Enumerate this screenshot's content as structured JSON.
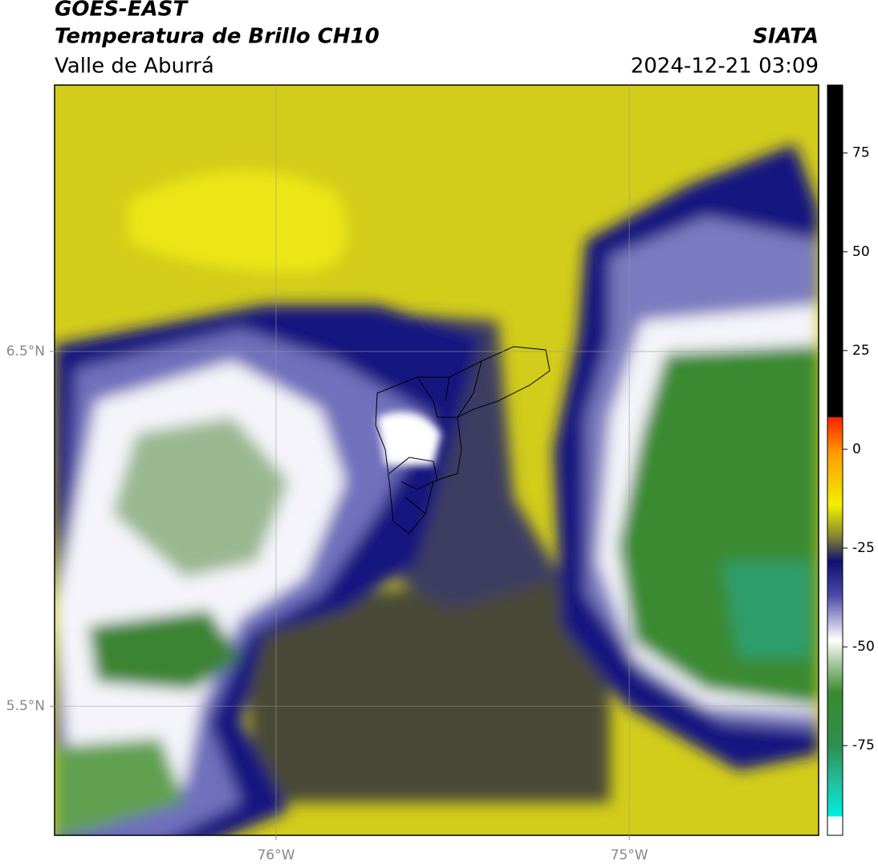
{
  "header": {
    "title": "GOES-EAST",
    "subtitle": "Temperatura de Brillo CH10",
    "region": "Valle de Aburrá",
    "source": "SIATA",
    "datetime": "2024-12-21 03:09"
  },
  "chart_data": {
    "type": "map",
    "xlim": [
      -76.627,
      -74.464
    ],
    "ylim": [
      5.136,
      7.251
    ],
    "xticks": [
      {
        "value": -76,
        "label": "76°W"
      },
      {
        "value": -75,
        "label": "75°W"
      }
    ],
    "yticks": [
      {
        "value": 5.5,
        "label": "5.5°N"
      },
      {
        "value": 6.5,
        "label": "6.5°N"
      }
    ],
    "grid": true,
    "colorbar": {
      "lim": [
        -97.7,
        92.2
      ],
      "ticks": [
        -75,
        -50,
        -25,
        0,
        25,
        50,
        75
      ]
    }
  }
}
